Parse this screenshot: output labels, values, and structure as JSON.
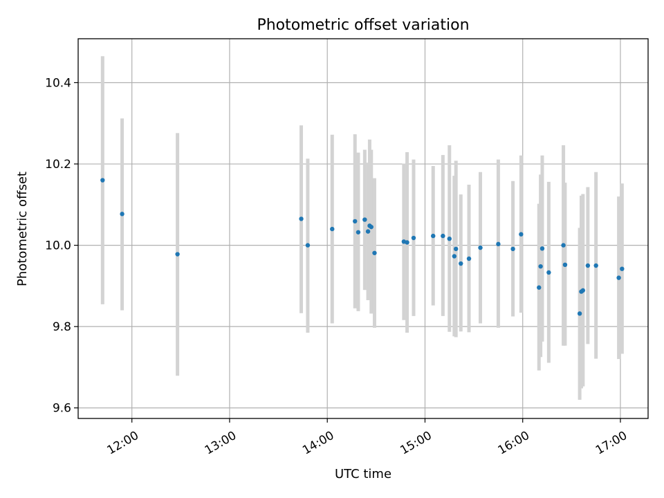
{
  "chart_data": {
    "type": "scatter",
    "title": "Photometric offset variation",
    "xlabel": "UTC time",
    "ylabel": "Photometric offset",
    "x_range": [
      "11:27",
      "17:17"
    ],
    "ylim": [
      9.574,
      10.508
    ],
    "x_ticks": [
      "12:00",
      "13:00",
      "14:00",
      "15:00",
      "16:00",
      "17:00"
    ],
    "y_ticks": [
      9.6,
      9.8,
      10.0,
      10.2,
      10.4
    ],
    "y_tick_labels": [
      "9.6",
      "9.8",
      "10.0",
      "10.2",
      "10.4"
    ],
    "grid": true,
    "error_bars": "vertical",
    "colors": {
      "point": "#1f77b4",
      "error_bar": "#d3d3d3",
      "grid": "#b0b0b0"
    },
    "series": [
      {
        "points": [
          {
            "x": "11:42",
            "y": 10.16,
            "ylo": 9.855,
            "yhi": 10.465
          },
          {
            "x": "11:54",
            "y": 10.077,
            "ylo": 9.84,
            "yhi": 10.312
          },
          {
            "x": "12:28",
            "y": 9.978,
            "ylo": 9.679,
            "yhi": 10.276
          },
          {
            "x": "13:44",
            "y": 10.065,
            "ylo": 9.833,
            "yhi": 10.295
          },
          {
            "x": "13:48",
            "y": 10.0,
            "ylo": 9.785,
            "yhi": 10.213
          },
          {
            "x": "14:03",
            "y": 10.04,
            "ylo": 9.808,
            "yhi": 10.272
          },
          {
            "x": "14:17",
            "y": 10.059,
            "ylo": 9.845,
            "yhi": 10.273
          },
          {
            "x": "14:19",
            "y": 10.032,
            "ylo": 9.838,
            "yhi": 10.228
          },
          {
            "x": "14:23",
            "y": 10.063,
            "ylo": 9.89,
            "yhi": 10.235
          },
          {
            "x": "14:25",
            "y": 10.034,
            "ylo": 9.865,
            "yhi": 10.203
          },
          {
            "x": "14:26",
            "y": 10.048,
            "ylo": 9.868,
            "yhi": 10.26
          },
          {
            "x": "14:27",
            "y": 10.045,
            "ylo": 9.832,
            "yhi": 10.235
          },
          {
            "x": "14:29",
            "y": 9.981,
            "ylo": 9.797,
            "yhi": 10.165
          },
          {
            "x": "14:47",
            "y": 10.009,
            "ylo": 9.816,
            "yhi": 10.201
          },
          {
            "x": "14:49",
            "y": 10.007,
            "ylo": 9.785,
            "yhi": 10.229
          },
          {
            "x": "14:53",
            "y": 10.018,
            "ylo": 9.826,
            "yhi": 10.211
          },
          {
            "x": "15:05",
            "y": 10.023,
            "ylo": 9.852,
            "yhi": 10.195
          },
          {
            "x": "15:11",
            "y": 10.023,
            "ylo": 9.826,
            "yhi": 10.222
          },
          {
            "x": "15:15",
            "y": 10.016,
            "ylo": 9.787,
            "yhi": 10.246
          },
          {
            "x": "15:18",
            "y": 9.973,
            "ylo": 9.776,
            "yhi": 10.171
          },
          {
            "x": "15:19",
            "y": 9.991,
            "ylo": 9.774,
            "yhi": 10.208
          },
          {
            "x": "15:22",
            "y": 9.955,
            "ylo": 9.788,
            "yhi": 10.125
          },
          {
            "x": "15:27",
            "y": 9.967,
            "ylo": 9.786,
            "yhi": 10.149
          },
          {
            "x": "15:34",
            "y": 9.994,
            "ylo": 9.808,
            "yhi": 10.18
          },
          {
            "x": "15:45",
            "y": 10.003,
            "ylo": 9.797,
            "yhi": 10.211
          },
          {
            "x": "15:54",
            "y": 9.991,
            "ylo": 9.825,
            "yhi": 10.158
          },
          {
            "x": "15:59",
            "y": 10.027,
            "ylo": 9.834,
            "yhi": 10.221
          },
          {
            "x": "16:10",
            "y": 9.896,
            "ylo": 9.692,
            "yhi": 10.102
          },
          {
            "x": "16:11",
            "y": 9.948,
            "ylo": 9.725,
            "yhi": 10.174
          },
          {
            "x": "16:12",
            "y": 9.992,
            "ylo": 9.763,
            "yhi": 10.221
          },
          {
            "x": "16:16",
            "y": 9.933,
            "ylo": 9.711,
            "yhi": 10.156
          },
          {
            "x": "16:25",
            "y": 10.0,
            "ylo": 9.753,
            "yhi": 10.246
          },
          {
            "x": "16:26",
            "y": 9.952,
            "ylo": 9.753,
            "yhi": 10.154
          },
          {
            "x": "16:35",
            "y": 9.832,
            "ylo": 9.62,
            "yhi": 10.043
          },
          {
            "x": "16:36",
            "y": 9.886,
            "ylo": 9.648,
            "yhi": 10.122
          },
          {
            "x": "16:37",
            "y": 9.889,
            "ylo": 9.653,
            "yhi": 10.126
          },
          {
            "x": "16:40",
            "y": 9.95,
            "ylo": 9.757,
            "yhi": 10.143
          },
          {
            "x": "16:45",
            "y": 9.95,
            "ylo": 9.721,
            "yhi": 10.18
          },
          {
            "x": "16:59",
            "y": 9.92,
            "ylo": 9.72,
            "yhi": 10.12
          },
          {
            "x": "17:01",
            "y": 9.942,
            "ylo": 9.733,
            "yhi": 10.152
          }
        ]
      }
    ]
  }
}
